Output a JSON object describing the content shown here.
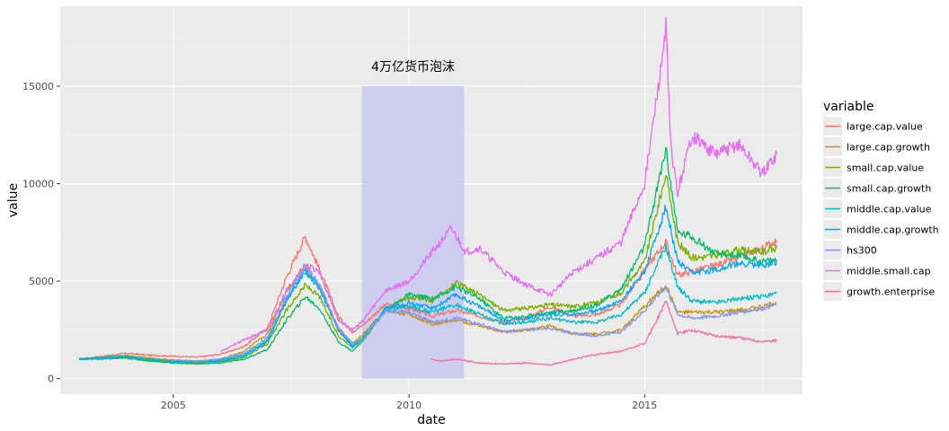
{
  "chart_data": {
    "type": "line",
    "xlabel": "date",
    "ylabel": "value",
    "xlim": [
      2002.6,
      2018.35
    ],
    "ylim": [
      -800,
      19100
    ],
    "x_ticks": [
      {
        "value": 2005,
        "label": "2005"
      },
      {
        "value": 2010,
        "label": "2010"
      },
      {
        "value": 2015,
        "label": "2015"
      }
    ],
    "y_ticks": [
      {
        "value": 0,
        "label": "0"
      },
      {
        "value": 5000,
        "label": "5000"
      },
      {
        "value": 10000,
        "label": "10000"
      },
      {
        "value": 15000,
        "label": "15000"
      }
    ],
    "grid": true,
    "legend": {
      "title": "variable",
      "position": "right"
    },
    "annotation": {
      "label": "4万亿货币泡沫",
      "x_start": 2009.0,
      "x_end": 2011.17,
      "y_top": 15000,
      "color": "#c9c8f0"
    },
    "series": [
      {
        "name": "large.cap.value",
        "color": "#F8766D",
        "points": [
          [
            2003.0,
            1000
          ],
          [
            2003.5,
            1150
          ],
          [
            2004.0,
            1300
          ],
          [
            2004.5,
            1200
          ],
          [
            2005.0,
            1150
          ],
          [
            2005.5,
            1100
          ],
          [
            2006.0,
            1250
          ],
          [
            2006.5,
            1650
          ],
          [
            2007.0,
            2600
          ],
          [
            2007.4,
            5200
          ],
          [
            2007.8,
            7300
          ],
          [
            2008.1,
            5600
          ],
          [
            2008.5,
            3200
          ],
          [
            2008.8,
            2400
          ],
          [
            2009.0,
            2700
          ],
          [
            2009.5,
            3800
          ],
          [
            2010.0,
            3600
          ],
          [
            2010.5,
            3200
          ],
          [
            2011.0,
            3500
          ],
          [
            2011.5,
            3200
          ],
          [
            2012.0,
            2900
          ],
          [
            2012.5,
            3100
          ],
          [
            2013.0,
            3700
          ],
          [
            2013.5,
            3200
          ],
          [
            2014.0,
            3300
          ],
          [
            2014.5,
            3800
          ],
          [
            2015.0,
            5600
          ],
          [
            2015.45,
            7000
          ],
          [
            2015.7,
            5300
          ],
          [
            2016.0,
            5500
          ],
          [
            2016.5,
            5800
          ],
          [
            2017.0,
            6200
          ],
          [
            2017.5,
            6700
          ],
          [
            2017.8,
            7100
          ]
        ]
      },
      {
        "name": "large.cap.growth",
        "color": "#CD9600",
        "points": [
          [
            2003.0,
            1000
          ],
          [
            2003.5,
            1100
          ],
          [
            2004.0,
            1200
          ],
          [
            2004.5,
            1050
          ],
          [
            2005.0,
            950
          ],
          [
            2005.5,
            900
          ],
          [
            2006.0,
            1000
          ],
          [
            2006.5,
            1400
          ],
          [
            2007.0,
            2300
          ],
          [
            2007.4,
            4500
          ],
          [
            2007.8,
            5800
          ],
          [
            2008.1,
            4700
          ],
          [
            2008.5,
            2600
          ],
          [
            2008.8,
            1800
          ],
          [
            2009.0,
            2200
          ],
          [
            2009.5,
            3500
          ],
          [
            2010.0,
            3300
          ],
          [
            2010.5,
            2800
          ],
          [
            2011.0,
            3000
          ],
          [
            2011.5,
            2700
          ],
          [
            2012.0,
            2400
          ],
          [
            2012.5,
            2500
          ],
          [
            2013.0,
            2700
          ],
          [
            2013.5,
            2300
          ],
          [
            2014.0,
            2300
          ],
          [
            2014.5,
            2500
          ],
          [
            2015.0,
            3700
          ],
          [
            2015.45,
            4800
          ],
          [
            2015.7,
            3400
          ],
          [
            2016.0,
            3400
          ],
          [
            2016.5,
            3400
          ],
          [
            2017.0,
            3500
          ],
          [
            2017.5,
            3700
          ],
          [
            2017.8,
            3900
          ]
        ]
      },
      {
        "name": "small.cap.value",
        "color": "#7CAE00",
        "points": [
          [
            2003.0,
            1000
          ],
          [
            2003.5,
            1050
          ],
          [
            2004.0,
            1100
          ],
          [
            2004.5,
            950
          ],
          [
            2005.0,
            850
          ],
          [
            2005.5,
            800
          ],
          [
            2006.0,
            850
          ],
          [
            2006.5,
            1100
          ],
          [
            2007.0,
            1800
          ],
          [
            2007.4,
            3500
          ],
          [
            2007.8,
            4800
          ],
          [
            2008.1,
            4200
          ],
          [
            2008.5,
            2200
          ],
          [
            2008.8,
            1600
          ],
          [
            2009.0,
            2000
          ],
          [
            2009.5,
            3600
          ],
          [
            2010.0,
            4200
          ],
          [
            2010.5,
            4000
          ],
          [
            2011.0,
            4900
          ],
          [
            2011.5,
            4300
          ],
          [
            2012.0,
            3500
          ],
          [
            2012.5,
            3600
          ],
          [
            2013.0,
            3800
          ],
          [
            2013.5,
            3700
          ],
          [
            2014.0,
            3900
          ],
          [
            2014.5,
            4400
          ],
          [
            2015.0,
            6000
          ],
          [
            2015.45,
            10500
          ],
          [
            2015.7,
            7000
          ],
          [
            2016.0,
            6200
          ],
          [
            2016.5,
            6300
          ],
          [
            2017.0,
            6600
          ],
          [
            2017.5,
            6500
          ],
          [
            2017.8,
            6700
          ]
        ]
      },
      {
        "name": "small.cap.growth",
        "color": "#00BE67",
        "points": [
          [
            2003.0,
            1000
          ],
          [
            2003.5,
            1000
          ],
          [
            2004.0,
            1050
          ],
          [
            2004.5,
            900
          ],
          [
            2005.0,
            800
          ],
          [
            2005.5,
            750
          ],
          [
            2006.0,
            800
          ],
          [
            2006.5,
            1000
          ],
          [
            2007.0,
            1500
          ],
          [
            2007.4,
            3000
          ],
          [
            2007.8,
            4200
          ],
          [
            2008.1,
            3600
          ],
          [
            2008.5,
            1900
          ],
          [
            2008.8,
            1400
          ],
          [
            2009.0,
            1900
          ],
          [
            2009.5,
            3500
          ],
          [
            2010.0,
            4300
          ],
          [
            2010.5,
            4100
          ],
          [
            2011.0,
            4700
          ],
          [
            2011.5,
            4100
          ],
          [
            2012.0,
            3100
          ],
          [
            2012.5,
            3200
          ],
          [
            2013.0,
            3400
          ],
          [
            2013.5,
            3500
          ],
          [
            2014.0,
            3800
          ],
          [
            2014.5,
            4600
          ],
          [
            2015.0,
            6800
          ],
          [
            2015.45,
            11800
          ],
          [
            2015.7,
            7500
          ],
          [
            2016.0,
            7300
          ],
          [
            2016.5,
            6400
          ],
          [
            2017.0,
            6300
          ],
          [
            2017.5,
            6000
          ],
          [
            2017.8,
            6100
          ]
        ]
      },
      {
        "name": "middle.cap.value",
        "color": "#00BFC4",
        "points": [
          [
            2003.0,
            1000
          ],
          [
            2003.5,
            1080
          ],
          [
            2004.0,
            1150
          ],
          [
            2004.5,
            1000
          ],
          [
            2005.0,
            900
          ],
          [
            2005.5,
            850
          ],
          [
            2006.0,
            950
          ],
          [
            2006.5,
            1200
          ],
          [
            2007.0,
            2000
          ],
          [
            2007.4,
            4100
          ],
          [
            2007.8,
            5500
          ],
          [
            2008.1,
            4600
          ],
          [
            2008.5,
            2500
          ],
          [
            2008.8,
            1700
          ],
          [
            2009.0,
            2100
          ],
          [
            2009.5,
            3500
          ],
          [
            2010.0,
            3700
          ],
          [
            2010.5,
            3400
          ],
          [
            2011.0,
            3800
          ],
          [
            2011.5,
            3300
          ],
          [
            2012.0,
            2800
          ],
          [
            2012.5,
            2900
          ],
          [
            2013.0,
            3100
          ],
          [
            2013.5,
            2900
          ],
          [
            2014.0,
            2900
          ],
          [
            2014.5,
            3300
          ],
          [
            2015.0,
            4400
          ],
          [
            2015.45,
            6800
          ],
          [
            2015.7,
            4700
          ],
          [
            2016.0,
            4000
          ],
          [
            2016.5,
            3900
          ],
          [
            2017.0,
            4100
          ],
          [
            2017.5,
            4200
          ],
          [
            2017.8,
            4400
          ]
        ]
      },
      {
        "name": "middle.cap.growth",
        "color": "#00A9FF",
        "points": [
          [
            2003.0,
            1000
          ],
          [
            2003.5,
            1060
          ],
          [
            2004.0,
            1120
          ],
          [
            2004.5,
            980
          ],
          [
            2005.0,
            880
          ],
          [
            2005.5,
            830
          ],
          [
            2006.0,
            900
          ],
          [
            2006.5,
            1150
          ],
          [
            2007.0,
            1900
          ],
          [
            2007.4,
            4000
          ],
          [
            2007.8,
            5600
          ],
          [
            2008.1,
            4700
          ],
          [
            2008.5,
            2500
          ],
          [
            2008.8,
            1600
          ],
          [
            2009.0,
            2000
          ],
          [
            2009.5,
            3600
          ],
          [
            2010.0,
            3900
          ],
          [
            2010.5,
            3600
          ],
          [
            2011.0,
            4300
          ],
          [
            2011.5,
            3700
          ],
          [
            2012.0,
            3000
          ],
          [
            2012.5,
            3100
          ],
          [
            2013.0,
            3300
          ],
          [
            2013.5,
            3300
          ],
          [
            2014.0,
            3500
          ],
          [
            2014.5,
            4000
          ],
          [
            2015.0,
            5500
          ],
          [
            2015.45,
            8800
          ],
          [
            2015.7,
            6000
          ],
          [
            2016.0,
            5400
          ],
          [
            2016.5,
            5600
          ],
          [
            2017.0,
            5900
          ],
          [
            2017.5,
            5800
          ],
          [
            2017.8,
            6000
          ]
        ]
      },
      {
        "name": "hs300",
        "color": "#8494FF",
        "points": [
          [
            2005.0,
            950
          ],
          [
            2005.5,
            900
          ],
          [
            2006.0,
            1000
          ],
          [
            2006.5,
            1300
          ],
          [
            2007.0,
            2100
          ],
          [
            2007.4,
            4200
          ],
          [
            2007.8,
            5800
          ],
          [
            2008.1,
            4800
          ],
          [
            2008.5,
            2600
          ],
          [
            2008.8,
            1800
          ],
          [
            2009.0,
            2000
          ],
          [
            2009.5,
            3500
          ],
          [
            2010.0,
            3400
          ],
          [
            2010.5,
            2900
          ],
          [
            2011.0,
            3100
          ],
          [
            2011.5,
            2800
          ],
          [
            2012.0,
            2400
          ],
          [
            2012.5,
            2500
          ],
          [
            2013.0,
            2600
          ],
          [
            2013.5,
            2300
          ],
          [
            2014.0,
            2200
          ],
          [
            2014.5,
            2400
          ],
          [
            2015.0,
            3500
          ],
          [
            2015.45,
            4700
          ],
          [
            2015.7,
            3300
          ],
          [
            2016.0,
            3100
          ],
          [
            2016.5,
            3200
          ],
          [
            2017.0,
            3400
          ],
          [
            2017.5,
            3600
          ],
          [
            2017.8,
            3800
          ]
        ]
      },
      {
        "name": "middle.small.cap",
        "color": "#E76BF3",
        "points": [
          [
            2006.0,
            1400
          ],
          [
            2006.5,
            2000
          ],
          [
            2007.0,
            2500
          ],
          [
            2007.4,
            4500
          ],
          [
            2007.8,
            5800
          ],
          [
            2008.1,
            5500
          ],
          [
            2008.5,
            3000
          ],
          [
            2008.8,
            2500
          ],
          [
            2009.0,
            2900
          ],
          [
            2009.5,
            4500
          ],
          [
            2010.0,
            5000
          ],
          [
            2010.5,
            6500
          ],
          [
            2010.9,
            7700
          ],
          [
            2011.2,
            6500
          ],
          [
            2011.5,
            6700
          ],
          [
            2012.0,
            5500
          ],
          [
            2012.5,
            4800
          ],
          [
            2013.0,
            4300
          ],
          [
            2013.5,
            5500
          ],
          [
            2014.0,
            6200
          ],
          [
            2014.5,
            7000
          ],
          [
            2015.0,
            10000
          ],
          [
            2015.35,
            16000
          ],
          [
            2015.45,
            18200
          ],
          [
            2015.55,
            12000
          ],
          [
            2015.7,
            9500
          ],
          [
            2016.0,
            12500
          ],
          [
            2016.5,
            11500
          ],
          [
            2017.0,
            12000
          ],
          [
            2017.5,
            10500
          ],
          [
            2017.8,
            11500
          ]
        ]
      },
      {
        "name": "growth.enterprise",
        "color": "#FF68A1",
        "points": [
          [
            2010.45,
            1000
          ],
          [
            2010.7,
            900
          ],
          [
            2011.0,
            1000
          ],
          [
            2011.5,
            800
          ],
          [
            2012.0,
            750
          ],
          [
            2012.5,
            800
          ],
          [
            2013.0,
            700
          ],
          [
            2013.5,
            1000
          ],
          [
            2014.0,
            1250
          ],
          [
            2014.5,
            1400
          ],
          [
            2015.0,
            1800
          ],
          [
            2015.3,
            3200
          ],
          [
            2015.45,
            4000
          ],
          [
            2015.7,
            2300
          ],
          [
            2016.0,
            2500
          ],
          [
            2016.5,
            2200
          ],
          [
            2017.0,
            2100
          ],
          [
            2017.5,
            1900
          ],
          [
            2017.8,
            1950
          ]
        ]
      }
    ]
  }
}
